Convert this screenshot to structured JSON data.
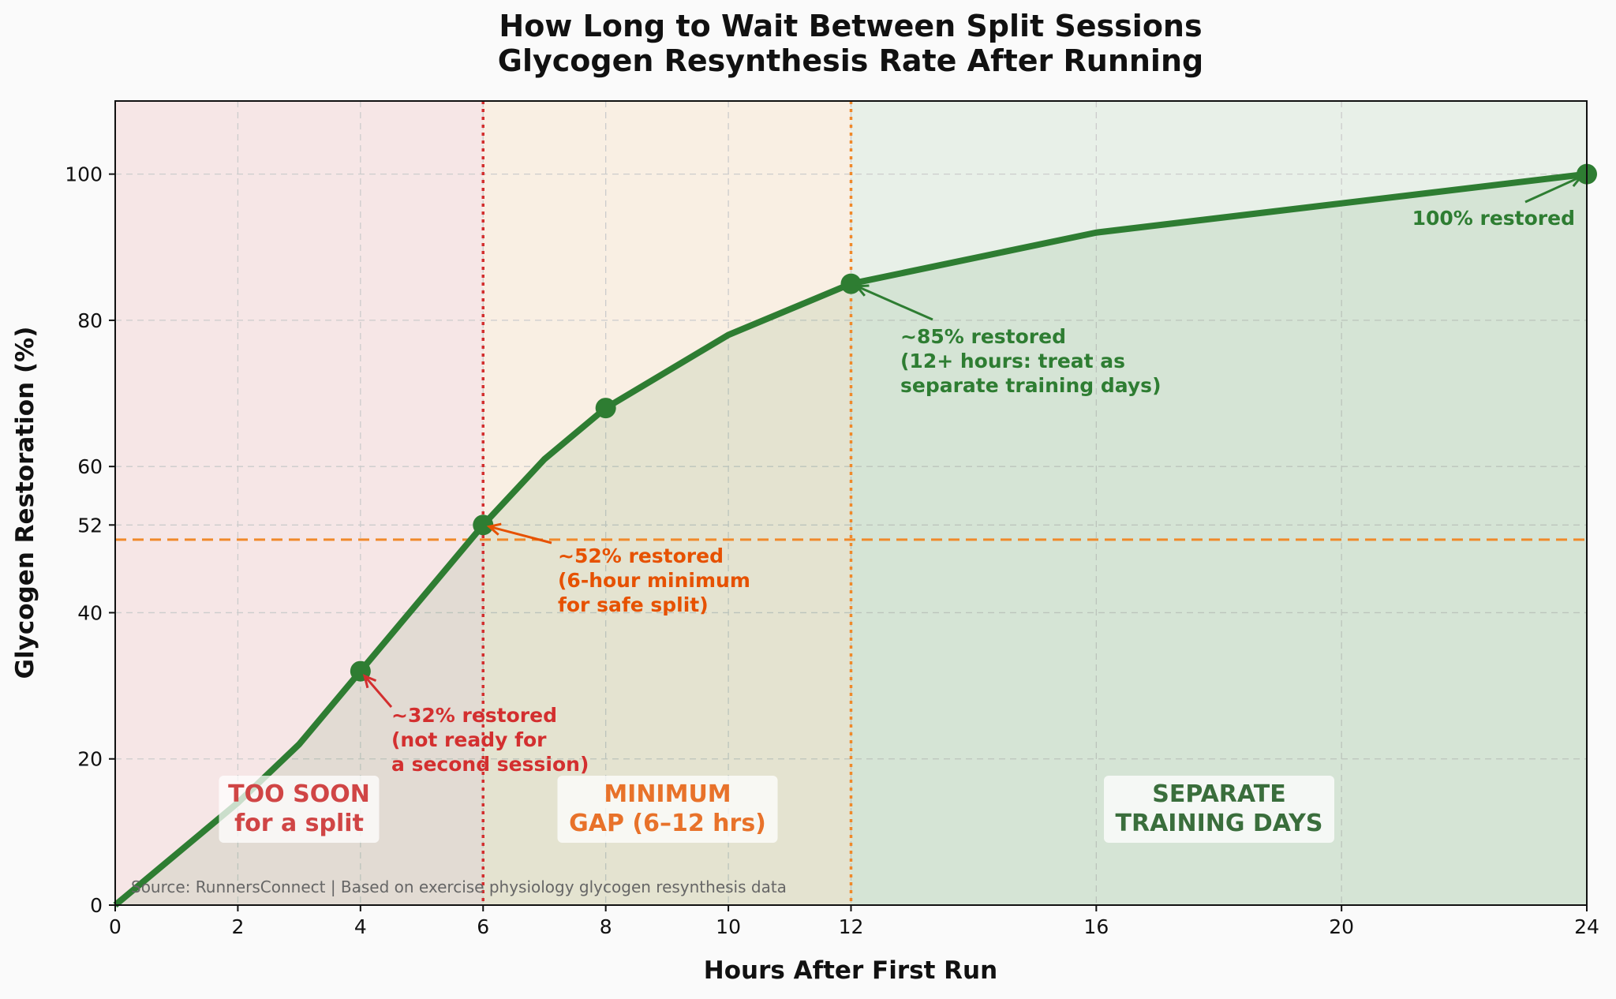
{
  "chart_data": {
    "type": "line",
    "title_lines": [
      "How Long to Wait Between Split Sessions",
      "Glycogen Resynthesis Rate After Running"
    ],
    "xlabel": "Hours After First Run",
    "ylabel": "Glycogen Restoration (%)",
    "xlim": [
      0,
      24
    ],
    "ylim": [
      0,
      110
    ],
    "xticks": [
      0,
      2,
      4,
      6,
      8,
      10,
      12,
      16,
      20,
      24
    ],
    "yticks": [
      0,
      20,
      40,
      52,
      60,
      80,
      100
    ],
    "grid": true,
    "series": [
      {
        "name": "Glycogen restoration",
        "color": "#2e7d32",
        "x": [
          0,
          1,
          2,
          3,
          4,
          5,
          6,
          7,
          8,
          10,
          12,
          16,
          20,
          24
        ],
        "y": [
          0,
          7,
          14,
          22,
          32,
          42,
          52,
          61,
          68,
          78,
          85,
          92,
          96,
          100
        ]
      }
    ],
    "markers": [
      {
        "x": 4,
        "y": 32
      },
      {
        "x": 6,
        "y": 52
      },
      {
        "x": 8,
        "y": 68
      },
      {
        "x": 12,
        "y": 85
      },
      {
        "x": 24,
        "y": 100
      }
    ],
    "zones": [
      {
        "from": 0,
        "to": 6,
        "color": "#f3d6d6",
        "label_lines": [
          "TOO SOON",
          "for a split"
        ],
        "label_color": "#d04545"
      },
      {
        "from": 6,
        "to": 12,
        "color": "#f8e6cf",
        "label_lines": [
          "MINIMUM",
          "GAP (6–12 hrs)"
        ],
        "label_color": "#e8722a"
      },
      {
        "from": 12,
        "to": 24,
        "color": "#d8e8d8",
        "label_lines": [
          "SEPARATE",
          "TRAINING DAYS"
        ],
        "label_color": "#3a6e3c"
      }
    ],
    "reference_lines": [
      {
        "axis": "x",
        "value": 6,
        "color": "#d32f2f"
      },
      {
        "axis": "x",
        "value": 12,
        "color": "#f0892a"
      },
      {
        "axis": "y",
        "value": 50,
        "color": "#f0892a"
      }
    ],
    "annotations": [
      {
        "x": 4,
        "y": 32,
        "color": "#d32f2f",
        "lines": [
          "~32% restored",
          "(not ready for",
          "a second session)"
        ]
      },
      {
        "x": 6,
        "y": 52,
        "color": "#e65100",
        "lines": [
          "~52% restored",
          "(6-hour minimum",
          "for safe split)"
        ]
      },
      {
        "x": 12,
        "y": 85,
        "color": "#2e7d32",
        "lines": [
          "~85% restored",
          "(12+ hours: treat as",
          "separate training days)"
        ]
      },
      {
        "x": 24,
        "y": 100,
        "color": "#2e7d32",
        "lines": [
          "100% restored"
        ]
      }
    ],
    "source": "Source: RunnersConnect | Based on exercise physiology glycogen resynthesis data"
  }
}
